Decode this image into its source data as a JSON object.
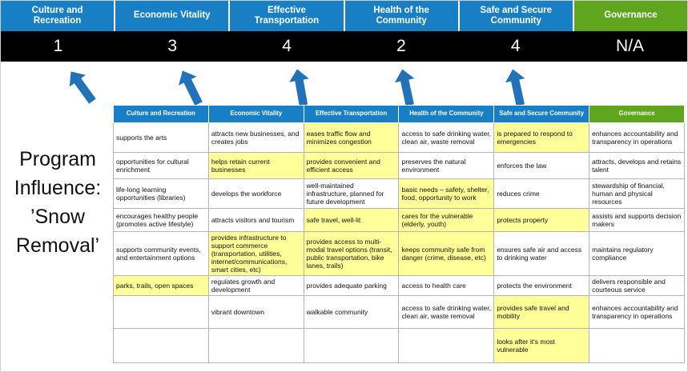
{
  "colors": {
    "header_blue": "#187FC4",
    "governance_green": "#5FA51D",
    "highlight_yellow": "#FFFF99",
    "score_bg": "#000000",
    "arrow_blue": "#2272BA"
  },
  "scoreboard": {
    "columns": [
      {
        "label": "Culture and Recreation",
        "score": "1",
        "green": false
      },
      {
        "label": "Economic Vitality",
        "score": "3",
        "green": false
      },
      {
        "label": "Effective Transportation",
        "score": "4",
        "green": false
      },
      {
        "label": "Health of the Community",
        "score": "2",
        "green": false
      },
      {
        "label": "Safe and Secure Community",
        "score": "4",
        "green": false
      },
      {
        "label": "Governance",
        "score": "N/A",
        "green": true
      }
    ]
  },
  "program_label": {
    "lines": [
      "Program",
      "Influence:",
      "’Snow",
      "Removal’"
    ]
  },
  "matrix": {
    "headers": [
      "Culture and Recreation",
      "Economic Vitality",
      "Effective Transportation",
      "Health of the Community",
      "Safe and Secure Community",
      "Governance"
    ],
    "rows": [
      [
        {
          "t": "supports the arts"
        },
        {
          "t": "attracts new businesses, and creates jobs"
        },
        {
          "t": "eases traffic flow and minimizes congestion",
          "y": true
        },
        {
          "t": "access to safe drinking water, clean air, waste removal"
        },
        {
          "t": "is prepared to respond to emergencies",
          "y": true
        },
        {
          "t": "enhances accountability and transparency in operations"
        }
      ],
      [
        {
          "t": "opportunities for cultural enrichment"
        },
        {
          "t": "helps retain current businesses",
          "y": true
        },
        {
          "t": "provides convenient and efficient access",
          "y": true
        },
        {
          "t": "preserves the natural environment"
        },
        {
          "t": "enforces the law"
        },
        {
          "t": "attracts, develops and retains talent"
        }
      ],
      [
        {
          "t": "life-long learning opportunities (libraries)"
        },
        {
          "t": "develops the workforce"
        },
        {
          "t": "well-maintained infrastructure, planned for future development"
        },
        {
          "t": "basic needs – safety, shelter, food, opportunity to work",
          "y": true
        },
        {
          "t": "reduces crime"
        },
        {
          "t": "stewardship of financial, human and physical resources"
        }
      ],
      [
        {
          "t": "encourages healthy people (promotes active lifestyle)"
        },
        {
          "t": "attracts visitors and tourism"
        },
        {
          "t": "safe travel, well-lit",
          "y": true
        },
        {
          "t": "cares for the vulnerable (elderly, youth)",
          "y": true
        },
        {
          "t": "protects property",
          "y": true
        },
        {
          "t": "assists and supports decision makers"
        }
      ],
      [
        {
          "t": "supports community events, and entertainment options"
        },
        {
          "t": "provides infrastructure to support commerce (transportation, utilities, internet/communications, smart cities, etc)",
          "y": true
        },
        {
          "t": "provides access to multi-modal travel options (transit, public transportation, bike lanes, trails)",
          "y": true
        },
        {
          "t": "keeps community safe from danger (crime, disease, etc)",
          "y": true
        },
        {
          "t": "ensures safe air and access to drinking water"
        },
        {
          "t": "maintains regulatory compliance"
        }
      ],
      [
        {
          "t": "parks, trails, open spaces",
          "y": true
        },
        {
          "t": "regulates growth and development"
        },
        {
          "t": "provides adequate parking"
        },
        {
          "t": "access to health care"
        },
        {
          "t": "protects the environment"
        },
        {
          "t": "delivers responsible and courteous service"
        }
      ],
      [
        {
          "t": ""
        },
        {
          "t": "vibrant downtown"
        },
        {
          "t": "walkable community"
        },
        {
          "t": "access to safe drinking water, clean air, waste removal"
        },
        {
          "t": "provides safe travel and mobility",
          "y": true
        },
        {
          "t": "enhances accountability and transparency in operations"
        }
      ],
      [
        {
          "t": ""
        },
        {
          "t": ""
        },
        {
          "t": ""
        },
        {
          "t": ""
        },
        {
          "t": "looks after it's most vulnerable",
          "y": true
        },
        {
          "t": ""
        }
      ]
    ]
  }
}
